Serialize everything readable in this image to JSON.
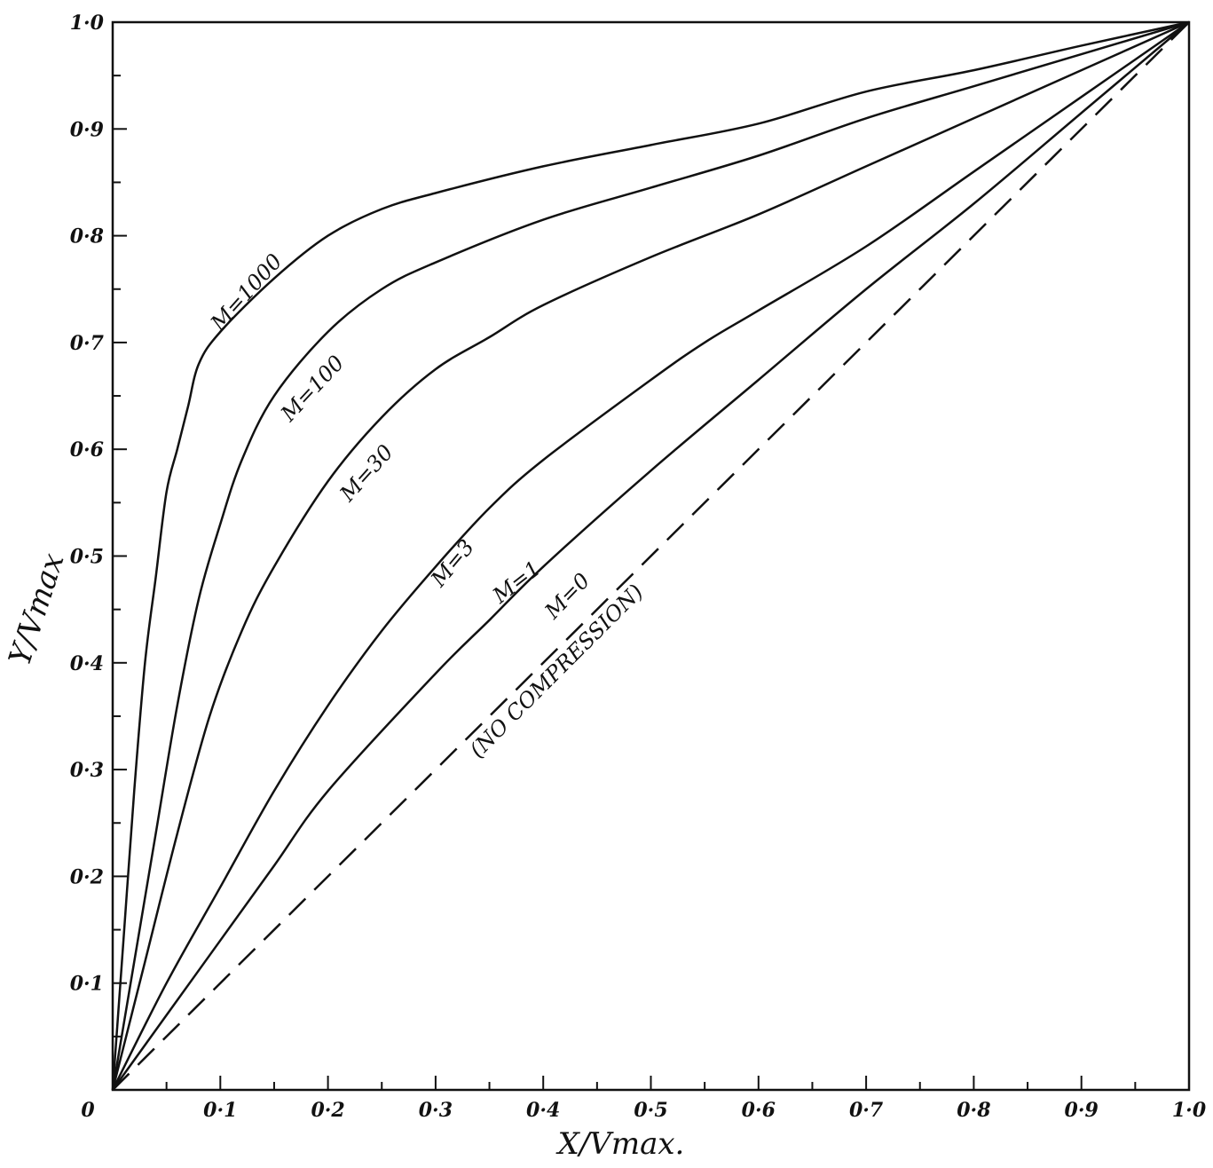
{
  "chart_data": {
    "type": "line",
    "title": "",
    "xlabel": "X/Vmax.",
    "ylabel": "Y/Vmax",
    "xlim": [
      0,
      1.0
    ],
    "ylim": [
      0,
      1.0
    ],
    "grid": false,
    "x_ticks": [
      "0",
      "0·1",
      "0·2",
      "0·3",
      "0·4",
      "0·5",
      "0·6",
      "0·7",
      "0·8",
      "0·9",
      "1·0"
    ],
    "y_ticks": [
      "0·1",
      "0·2",
      "0·3",
      "0·4",
      "0·5",
      "0·6",
      "0·7",
      "0·8",
      "0·9",
      "1·0"
    ],
    "series": [
      {
        "name": "M=1000",
        "dash": false,
        "points": [
          [
            0,
            0
          ],
          [
            0.01,
            0.14
          ],
          [
            0.02,
            0.28
          ],
          [
            0.03,
            0.4
          ],
          [
            0.04,
            0.48
          ],
          [
            0.05,
            0.56
          ],
          [
            0.06,
            0.6
          ],
          [
            0.07,
            0.64
          ],
          [
            0.08,
            0.68
          ],
          [
            0.1,
            0.71
          ],
          [
            0.15,
            0.76
          ],
          [
            0.2,
            0.8
          ],
          [
            0.25,
            0.825
          ],
          [
            0.3,
            0.84
          ],
          [
            0.4,
            0.865
          ],
          [
            0.5,
            0.885
          ],
          [
            0.6,
            0.905
          ],
          [
            0.7,
            0.935
          ],
          [
            0.8,
            0.955
          ],
          [
            0.9,
            0.978
          ],
          [
            1.0,
            1.0
          ]
        ]
      },
      {
        "name": "M=100",
        "dash": false,
        "points": [
          [
            0,
            0
          ],
          [
            0.02,
            0.12
          ],
          [
            0.04,
            0.24
          ],
          [
            0.06,
            0.36
          ],
          [
            0.08,
            0.46
          ],
          [
            0.1,
            0.53
          ],
          [
            0.12,
            0.59
          ],
          [
            0.15,
            0.65
          ],
          [
            0.2,
            0.71
          ],
          [
            0.25,
            0.75
          ],
          [
            0.3,
            0.775
          ],
          [
            0.4,
            0.815
          ],
          [
            0.5,
            0.845
          ],
          [
            0.6,
            0.875
          ],
          [
            0.7,
            0.91
          ],
          [
            0.8,
            0.94
          ],
          [
            0.9,
            0.97
          ],
          [
            1.0,
            1.0
          ]
        ]
      },
      {
        "name": "M=30",
        "dash": false,
        "points": [
          [
            0,
            0
          ],
          [
            0.03,
            0.12
          ],
          [
            0.06,
            0.24
          ],
          [
            0.09,
            0.35
          ],
          [
            0.12,
            0.43
          ],
          [
            0.15,
            0.49
          ],
          [
            0.2,
            0.57
          ],
          [
            0.25,
            0.63
          ],
          [
            0.3,
            0.675
          ],
          [
            0.35,
            0.705
          ],
          [
            0.4,
            0.735
          ],
          [
            0.5,
            0.78
          ],
          [
            0.6,
            0.82
          ],
          [
            0.7,
            0.865
          ],
          [
            0.8,
            0.91
          ],
          [
            0.9,
            0.955
          ],
          [
            1.0,
            1.0
          ]
        ]
      },
      {
        "name": "M=3",
        "dash": false,
        "points": [
          [
            0,
            0
          ],
          [
            0.05,
            0.1
          ],
          [
            0.1,
            0.19
          ],
          [
            0.15,
            0.28
          ],
          [
            0.2,
            0.36
          ],
          [
            0.25,
            0.43
          ],
          [
            0.3,
            0.49
          ],
          [
            0.35,
            0.545
          ],
          [
            0.4,
            0.59
          ],
          [
            0.5,
            0.665
          ],
          [
            0.55,
            0.7
          ],
          [
            0.6,
            0.73
          ],
          [
            0.7,
            0.79
          ],
          [
            0.8,
            0.86
          ],
          [
            0.9,
            0.93
          ],
          [
            1.0,
            1.0
          ]
        ]
      },
      {
        "name": "M=1",
        "dash": false,
        "points": [
          [
            0,
            0
          ],
          [
            0.05,
            0.07
          ],
          [
            0.1,
            0.14
          ],
          [
            0.15,
            0.21
          ],
          [
            0.2,
            0.28
          ],
          [
            0.3,
            0.39
          ],
          [
            0.35,
            0.44
          ],
          [
            0.4,
            0.49
          ],
          [
            0.5,
            0.58
          ],
          [
            0.6,
            0.665
          ],
          [
            0.7,
            0.75
          ],
          [
            0.8,
            0.83
          ],
          [
            0.9,
            0.915
          ],
          [
            1.0,
            1.0
          ]
        ]
      },
      {
        "name": "M=0",
        "dash": true,
        "points": [
          [
            0,
            0
          ],
          [
            1.0,
            1.0
          ]
        ]
      }
    ],
    "annotations": [
      {
        "text": "M=1000",
        "x": 0.1,
        "y": 0.71,
        "angle": -48
      },
      {
        "text": "M=100",
        "x": 0.165,
        "y": 0.625,
        "angle": -47
      },
      {
        "text": "M=30",
        "x": 0.22,
        "y": 0.55,
        "angle": -48
      },
      {
        "text": "M=3",
        "x": 0.305,
        "y": 0.47,
        "angle": -50
      },
      {
        "text": "M=1",
        "x": 0.36,
        "y": 0.455,
        "angle": -38
      },
      {
        "text": "M=0",
        "x": 0.41,
        "y": 0.44,
        "angle": -46
      },
      {
        "text": "(NO COMPRESSION)",
        "x": 0.34,
        "y": 0.31,
        "angle": -45
      }
    ]
  }
}
